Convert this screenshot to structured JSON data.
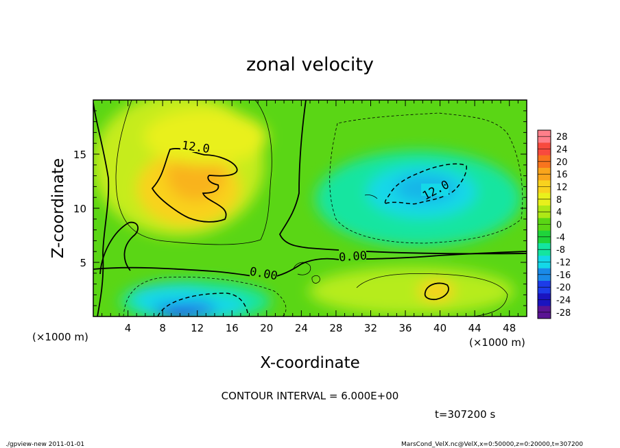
{
  "chart_data": {
    "type": "contour",
    "title": "zonal velocity",
    "xlabel": "X-coordinate",
    "ylabel": "Z-coordinate",
    "x_units_label": "(×1000 m)",
    "y_units_label": "(×1000 m)",
    "xlim": [
      0,
      50
    ],
    "ylim": [
      0,
      20
    ],
    "x_ticks": [
      4,
      8,
      12,
      16,
      20,
      24,
      28,
      32,
      36,
      40,
      44,
      48
    ],
    "y_ticks": [
      5,
      10,
      15
    ],
    "colorbar": {
      "levels": [
        28,
        24,
        20,
        16,
        12,
        8,
        4,
        0,
        -4,
        -8,
        -12,
        -16,
        -20,
        -24,
        -28
      ],
      "colors": [
        "#ff7f8a",
        "#f84a3e",
        "#f8741e",
        "#f9a51c",
        "#f9d21e",
        "#e9f01c",
        "#aee816",
        "#5ad615",
        "#1fd43b",
        "#14e5a0",
        "#14d8e8",
        "#1a8ae8",
        "#1d3ce8",
        "#1a14bf",
        "#5a1494"
      ]
    },
    "contour_interval_label": "CONTOUR INTERVAL = 6.000E+00",
    "contour_labels": [
      "12.0",
      "12.0",
      "0.00",
      "0.00"
    ],
    "time_label": "t=307200 s",
    "features": [
      {
        "name": "positive core upper left",
        "x": 11,
        "z": 12,
        "value": 16
      },
      {
        "name": "negative core upper right",
        "x": 38,
        "z": 12,
        "value": -12
      },
      {
        "name": "negative core lower left",
        "x": 12,
        "z": 1,
        "value": -22
      },
      {
        "name": "positive core lower right",
        "x": 40,
        "z": 2.5,
        "value": 14
      }
    ]
  },
  "footer": {
    "left": "./gpview-new   2011-01-01",
    "right": "MarsCond_VelX.nc@VelX,x=0:50000,z=0:20000,t=307200"
  }
}
